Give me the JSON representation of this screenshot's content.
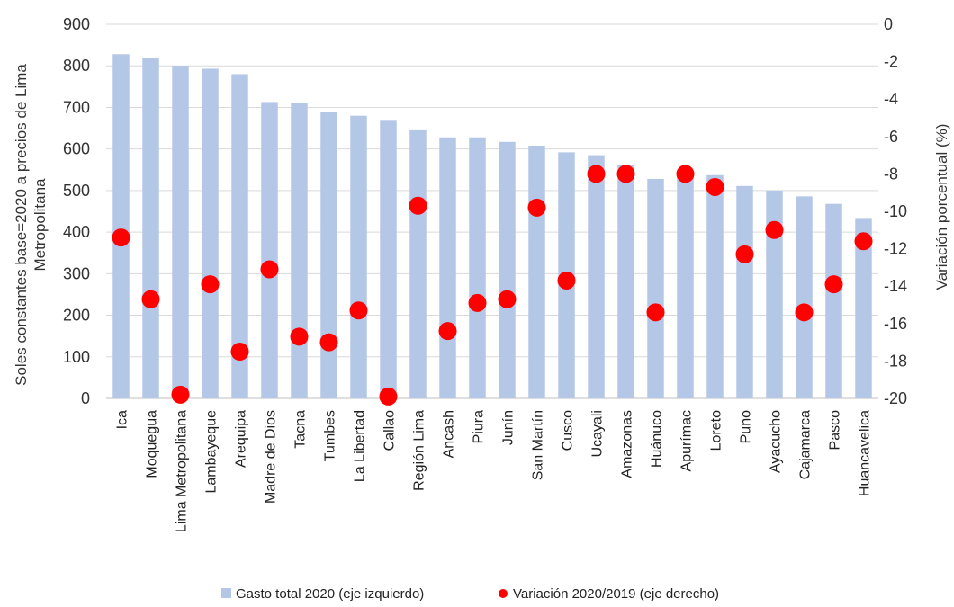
{
  "chart_data": {
    "type": "bar",
    "categories": [
      "Ica",
      "Moquegua",
      "Lima Metropolitana",
      "Lambayeque",
      "Arequipa",
      "Madre de Dios",
      "Tacna",
      "Tumbes",
      "La Libertad",
      "Callao",
      "Región Lima",
      "Ancash",
      "Piura",
      "Junín",
      "San Martín",
      "Cusco",
      "Ucayali",
      "Amazonas",
      "Huánuco",
      "Apurímac",
      "Loreto",
      "Puno",
      "Ayacucho",
      "Cajamarca",
      "Pasco",
      "Huancavelica"
    ],
    "series": [
      {
        "name": "Gasto total 2020 (eje izquierdo)",
        "axis": "left",
        "type": "bar",
        "color": "#b4c7e7",
        "values": [
          828,
          820,
          800,
          793,
          780,
          713,
          711,
          689,
          680,
          670,
          645,
          628,
          628,
          617,
          608,
          592,
          585,
          562,
          528,
          545,
          537,
          511,
          500,
          486,
          468,
          434
        ]
      },
      {
        "name": "Variación 2020/2019 (eje derecho)",
        "axis": "right",
        "type": "scatter",
        "color": "#ff0000",
        "values": [
          -11.4,
          -14.7,
          -19.8,
          -13.9,
          -17.5,
          -13.1,
          -16.7,
          -17.0,
          -15.3,
          -19.9,
          -9.7,
          -16.4,
          -14.9,
          -14.7,
          -9.8,
          -13.7,
          -8.0,
          -8.0,
          -15.4,
          -8.0,
          -8.7,
          -12.3,
          -11.0,
          -15.4,
          -13.9,
          -11.6
        ]
      }
    ],
    "yaxis_left": {
      "label": "Soles constantes base=2020 a precios de Lima Metropolitana",
      "label_lines": [
        "Soles constantes base=2020 a precios de Lima",
        "Metropolitana"
      ],
      "ylim": [
        0,
        900
      ],
      "ticks": [
        "0",
        "100",
        "200",
        "300",
        "400",
        "500",
        "600",
        "700",
        "800",
        "900"
      ]
    },
    "yaxis_right": {
      "label": "Variación porcentual (%)",
      "ylim": [
        -20,
        0
      ],
      "ticks": [
        "-20",
        "-18",
        "-16",
        "-14",
        "-12",
        "-10",
        "-8",
        "-6",
        "-4",
        "-2",
        "0"
      ]
    },
    "grid": true,
    "legend_position": "bottom",
    "legend": [
      {
        "label": "Gasto total 2020 (eje izquierdo)",
        "marker": "square",
        "color": "#b4c7e7"
      },
      {
        "label": "Variación 2020/2019 (eje derecho)",
        "marker": "circle",
        "color": "#ff0000"
      }
    ]
  }
}
